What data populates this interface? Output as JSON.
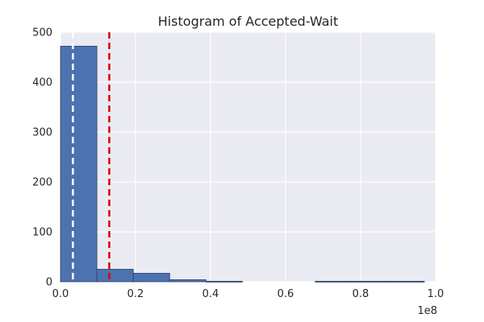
{
  "chart_data": {
    "type": "bar",
    "title": "Histogram of Accepted-Wait",
    "xlabel": "",
    "ylabel": "",
    "x_scale_label": "1e8",
    "xlim": [
      0.0,
      1.0
    ],
    "ylim": [
      0,
      500
    ],
    "xticks": [
      0.0,
      0.2,
      0.4,
      0.6,
      0.8,
      1.0
    ],
    "xtick_labels": [
      "0.0",
      "0.2",
      "0.4",
      "0.6",
      "0.8",
      "1.0"
    ],
    "yticks": [
      0,
      100,
      200,
      300,
      400,
      500
    ],
    "ytick_labels": [
      "0",
      "100",
      "200",
      "300",
      "400",
      "500"
    ],
    "grid": true,
    "bins": [
      {
        "x0": 0.0,
        "x1": 0.097,
        "count": 472
      },
      {
        "x0": 0.097,
        "x1": 0.194,
        "count": 25
      },
      {
        "x0": 0.194,
        "x1": 0.291,
        "count": 17
      },
      {
        "x0": 0.291,
        "x1": 0.388,
        "count": 4
      },
      {
        "x0": 0.388,
        "x1": 0.485,
        "count": 1
      },
      {
        "x0": 0.485,
        "x1": 0.582,
        "count": 0
      },
      {
        "x0": 0.582,
        "x1": 0.679,
        "count": 0
      },
      {
        "x0": 0.679,
        "x1": 0.776,
        "count": 1
      },
      {
        "x0": 0.776,
        "x1": 0.873,
        "count": 1
      },
      {
        "x0": 0.873,
        "x1": 0.97,
        "count": 1
      }
    ],
    "vlines": [
      {
        "x": 0.033,
        "color": "#ffffff",
        "style": "dashed"
      },
      {
        "x": 0.13,
        "color": "#e00000",
        "style": "dashed"
      }
    ],
    "colors": {
      "bar_fill": "#4c72b0",
      "bar_edge": "#2a3f66",
      "plot_bg": "#eaeaf2",
      "grid": "#ffffff"
    }
  }
}
